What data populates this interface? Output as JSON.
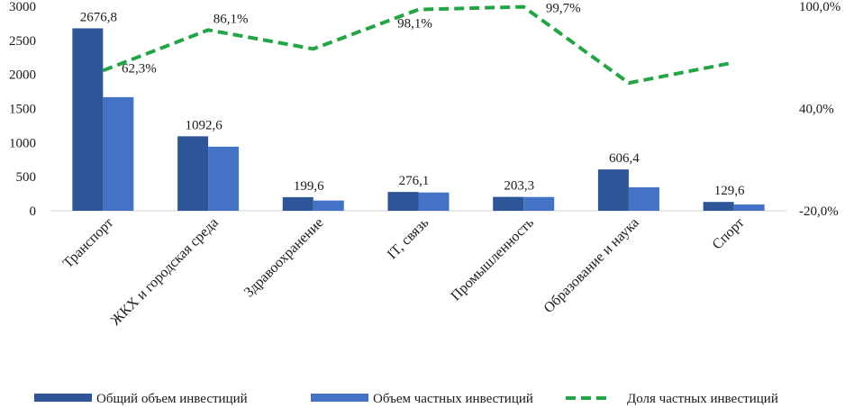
{
  "chart_data": {
    "type": "bar",
    "categories": [
      "Транспорт",
      "ЖКХ и городская среда",
      "Здравоохранение",
      "IT, связь",
      "Промышленность",
      "Образование и наука",
      "Спорт"
    ],
    "series": [
      {
        "name": "Общий объем инвестиций",
        "kind": "bar",
        "axis": "left",
        "color": "#2E5597",
        "values": [
          2676.8,
          1092.6,
          199.6,
          276.1,
          203.3,
          606.4,
          129.6
        ]
      },
      {
        "name": "Объем частных инвестиций",
        "kind": "bar",
        "axis": "left",
        "color": "#4472C4",
        "values": [
          1667.0,
          940.0,
          150.0,
          268.0,
          202.0,
          345.0,
          92.0
        ]
      },
      {
        "name": "Доля частных инвестиций",
        "kind": "line",
        "style": "dashed",
        "axis": "right",
        "color": "#22A645",
        "values": [
          62.3,
          86.1,
          75.0,
          98.1,
          99.7,
          55.0,
          67.0
        ]
      }
    ],
    "bar_labels": [
      "2676,8",
      "1092,6",
      "199,6",
      "276,1",
      "203,3",
      "606,4",
      "129,6"
    ],
    "line_labels": [
      {
        "index": 0,
        "text": "62,3%"
      },
      {
        "index": 1,
        "text": "86,1%"
      },
      {
        "index": 3,
        "text": "98,1%"
      },
      {
        "index": 4,
        "text": "99,7%"
      }
    ],
    "left_axis": {
      "ylim": [
        0,
        3000
      ],
      "ticks": [
        "0",
        "500",
        "1000",
        "1500",
        "2000",
        "2500",
        "3000"
      ],
      "tick_values": [
        0,
        500,
        1000,
        1500,
        2000,
        2500,
        3000
      ]
    },
    "right_axis": {
      "ylim": [
        -20,
        100
      ],
      "ticks": [
        "-20,0%",
        "40,0%",
        "100,0%"
      ],
      "tick_values": [
        -20,
        40,
        100
      ]
    },
    "grid": false,
    "legend_position": "bottom",
    "title": "",
    "xlabel": "",
    "ylabel": ""
  }
}
